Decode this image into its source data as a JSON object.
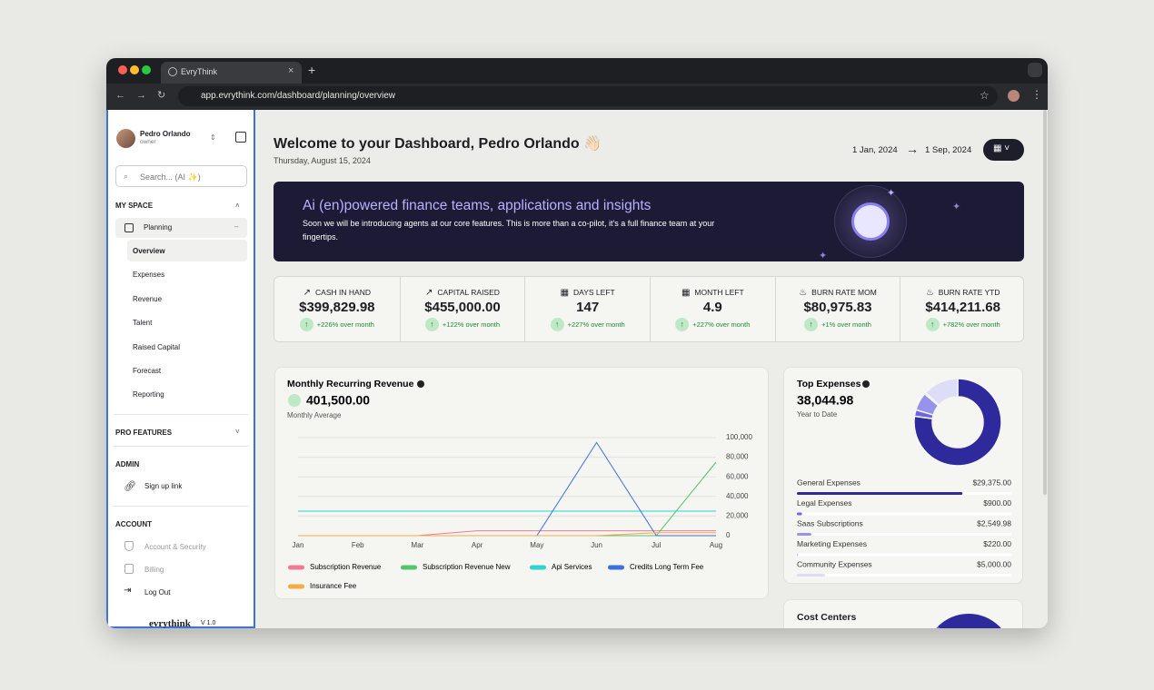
{
  "browser": {
    "tab_title": "EvryThink",
    "url": "app.evrythink.com/dashboard/planning/overview"
  },
  "sidebar": {
    "user_name": "Pedro Orlando",
    "user_role": "owner",
    "search_placeholder": "Search... (AI ✨)",
    "my_space": "MY SPACE",
    "planning": "Planning",
    "planning_items": [
      "Overview",
      "Expenses",
      "Revenue",
      "Talent",
      "Raised Capital",
      "Forecast",
      "Reporting"
    ],
    "pro_features": "PRO FEATURES",
    "admin": "ADMIN",
    "admin_items": [
      "Sign up link"
    ],
    "account": "ACCOUNT",
    "account_items": [
      "Account & Security",
      "Billing",
      "Log Out"
    ],
    "brand": "evrythink",
    "version": "V 1.0"
  },
  "header": {
    "title": "Welcome to your Dashboard, Pedro Orlando 👋🏻",
    "date": "Thursday, August 15, 2024",
    "range_start": "1 Jan, 2024",
    "range_end": "1 Sep, 2024"
  },
  "banner": {
    "title": "Ai (en)powered finance teams, applications and insights",
    "text": "Soon we will be introducing agents at our core features. This is more than a co-pilot, it's a full finance team at your fingertips."
  },
  "kpis": [
    {
      "label": "CASH IN HAND",
      "value": "$399,829.98",
      "change": "+226% over month"
    },
    {
      "label": "CAPITAL RAISED",
      "value": "$455,000.00",
      "change": "+122% over month"
    },
    {
      "label": "DAYS LEFT",
      "value": "147",
      "change": "+227% over month"
    },
    {
      "label": "MONTH LEFT",
      "value": "4.9",
      "change": "+227% over month"
    },
    {
      "label": "BURN RATE MOM",
      "value": "$80,975.83",
      "change": "+1% over month"
    },
    {
      "label": "BURN RATE YTD",
      "value": "$414,211.68",
      "change": "+782% over month"
    }
  ],
  "chart_data": [
    {
      "type": "line",
      "title": "Monthly Recurring Revenue",
      "headline": "401,500.00",
      "subtitle": "Monthly Average",
      "categories": [
        "Jan",
        "Feb",
        "Mar",
        "Apr",
        "May",
        "Jun",
        "Jul",
        "Aug"
      ],
      "ylim": [
        0,
        100000
      ],
      "yticks": [
        0,
        {
          "value": 20000,
          "label": "20,000"
        },
        {
          "value": 40000,
          "label": "40,000"
        },
        {
          "value": 60000,
          "label": "60,000"
        },
        {
          "value": 80000,
          "label": "80,000"
        },
        {
          "value": 100000,
          "label": "100,000"
        }
      ],
      "grid": true,
      "legend": "bottom",
      "series": [
        {
          "name": "Subscription Revenue",
          "color": "#f07a90",
          "values": [
            0,
            0,
            0,
            5000,
            5000,
            5000,
            5000,
            5000
          ]
        },
        {
          "name": "Subscription Revenue New",
          "color": "#55c46e",
          "values": [
            0,
            0,
            0,
            0,
            0,
            0,
            0,
            75000
          ]
        },
        {
          "name": "Api Services",
          "color": "#2dd4d0",
          "values": [
            25000,
            25000,
            25000,
            25000,
            25000,
            25000,
            25000,
            25000
          ]
        },
        {
          "name": "Credits Long Term Fee",
          "color": "#3c6fe0",
          "values": [
            0,
            0,
            0,
            0,
            0,
            95000,
            0,
            0
          ]
        },
        {
          "name": "Insurance Fee",
          "color": "#f7ab45",
          "values": [
            0,
            0,
            0,
            0,
            0,
            0,
            3000,
            3000
          ]
        }
      ]
    },
    {
      "type": "pie",
      "donut": true,
      "title": "Top Expenses",
      "headline": "38,044.98",
      "subtitle": "Year to Date",
      "categories": [
        "General Expenses",
        "Legal Expenses",
        "Saas Subscriptions",
        "Marketing Expenses",
        "Community Expenses"
      ],
      "values": [
        29375,
        900,
        2549.98,
        220,
        5000
      ],
      "value_labels": [
        "$29,375.00",
        "$900.00",
        "$2,549.98",
        "$220.00",
        "$5,000.00"
      ],
      "colors": [
        "#2e2a9c",
        "#6d66e0",
        "#9893ea",
        "#bdb9f1",
        "#deddf7"
      ]
    }
  ],
  "cost_centers": {
    "title": "Cost Centers"
  }
}
